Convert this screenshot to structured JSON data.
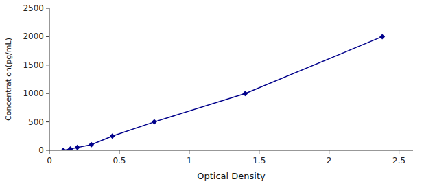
{
  "chart_data": {
    "type": "line",
    "x": [
      0.1,
      0.15,
      0.2,
      0.3,
      0.45,
      0.75,
      1.4,
      2.38
    ],
    "values": [
      0,
      25,
      50,
      100,
      250,
      500,
      1000,
      2000
    ],
    "color": "#00008B",
    "marker": "diamond",
    "xlabel": "Optical Density",
    "ylabel": "Concentration(pg/mL)",
    "xlim": [
      0.0,
      2.6
    ],
    "ylim": [
      0,
      2500
    ],
    "xticks": [
      0,
      0.5,
      1,
      1.5,
      2,
      2.5
    ],
    "yticks": [
      0,
      500,
      1000,
      1500,
      2000,
      2500
    ],
    "grid": false
  }
}
